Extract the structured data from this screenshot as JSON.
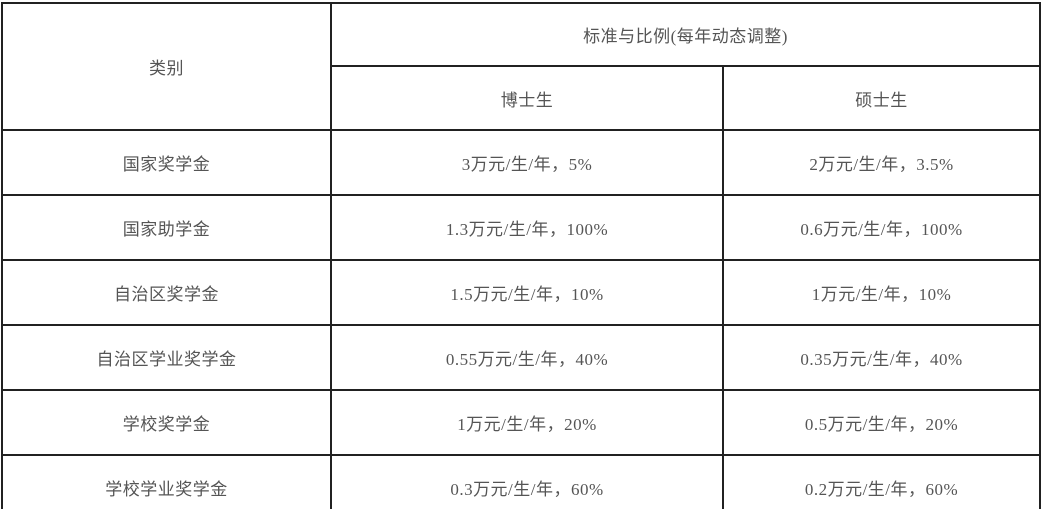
{
  "chart_data": {
    "type": "table",
    "title": "",
    "columns": [
      "类别",
      "博士生",
      "硕士生"
    ],
    "header_group": "标准与比例(每年动态调整)",
    "rows": [
      [
        "国家奖学金",
        "3万元/生/年，5%",
        "2万元/生/年，3.5%"
      ],
      [
        "国家助学金",
        "1.3万元/生/年，100%",
        "0.6万元/生/年，100%"
      ],
      [
        "自治区奖学金",
        "1.5万元/生/年，10%",
        "1万元/生/年，10%"
      ],
      [
        "自治区学业奖学金",
        "0.55万元/生/年，40%",
        "0.35万元/生/年，40%"
      ],
      [
        "学校奖学金",
        "1万元/生/年，20%",
        "0.5万元/生/年，20%"
      ],
      [
        "学校学业奖学金",
        "0.3万元/生/年，60%",
        "0.2万元/生/年，60%"
      ]
    ],
    "layout": {
      "grid": "on",
      "header_levels": 2,
      "group_span": [
        "博士生",
        "硕士生"
      ]
    }
  },
  "table": {
    "header": {
      "category": "类别",
      "group": "标准与比例(每年动态调整)",
      "doctoral": "博士生",
      "master": "硕士生"
    },
    "rows": [
      {
        "category": "国家奖学金",
        "doctoral": "3万元/生/年，5%",
        "master": "2万元/生/年，3.5%"
      },
      {
        "category": "国家助学金",
        "doctoral": "1.3万元/生/年，100%",
        "master": "0.6万元/生/年，100%"
      },
      {
        "category": "自治区奖学金",
        "doctoral": "1.5万元/生/年，10%",
        "master": "1万元/生/年，10%"
      },
      {
        "category": "自治区学业奖学金",
        "doctoral": "0.55万元/生/年，40%",
        "master": "0.35万元/生/年，40%"
      },
      {
        "category": "学校奖学金",
        "doctoral": "1万元/生/年，20%",
        "master": "0.5万元/生/年，20%"
      },
      {
        "category": "学校学业奖学金",
        "doctoral": "0.3万元/生/年，60%",
        "master": "0.2万元/生/年，60%"
      }
    ],
    "colors": {
      "border": "#212121",
      "text": "#555555",
      "background": "#ffffff"
    }
  }
}
